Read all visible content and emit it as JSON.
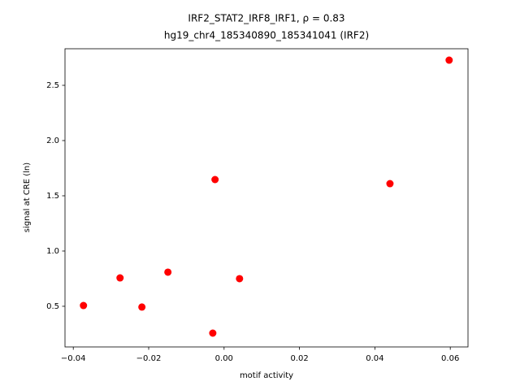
{
  "chart_data": {
    "type": "scatter",
    "title": "IRF2_STAT2_IRF8_IRF1, ρ = 0.83",
    "subtitle": "hg19_chr4_185340890_185341041 (IRF2)",
    "x_label": "motif activity",
    "y_label": "signal at CRE (ln)",
    "color": "#ff0000",
    "x": [
      -0.0373,
      -0.0276,
      -0.0218,
      -0.0149,
      -0.003,
      -0.0024,
      0.0041,
      0.044,
      0.0597
    ],
    "values": [
      0.507,
      0.757,
      0.493,
      0.809,
      0.257,
      1.647,
      0.75,
      1.61,
      2.728
    ],
    "xlim": [
      -0.0422,
      0.0647
    ],
    "ylim": [
      0.132,
      2.831
    ],
    "xticks": [
      {
        "value": -0.04,
        "label": "−0.04"
      },
      {
        "value": -0.02,
        "label": "−0.02"
      },
      {
        "value": 0,
        "label": "0.00"
      },
      0.02,
      0.04,
      0.06
    ],
    "yticks": [
      0.5,
      {
        "value": 1,
        "label": "1.0"
      },
      1.5,
      {
        "value": 2,
        "label": "2.0"
      },
      2.5
    ],
    "grid": false
  }
}
